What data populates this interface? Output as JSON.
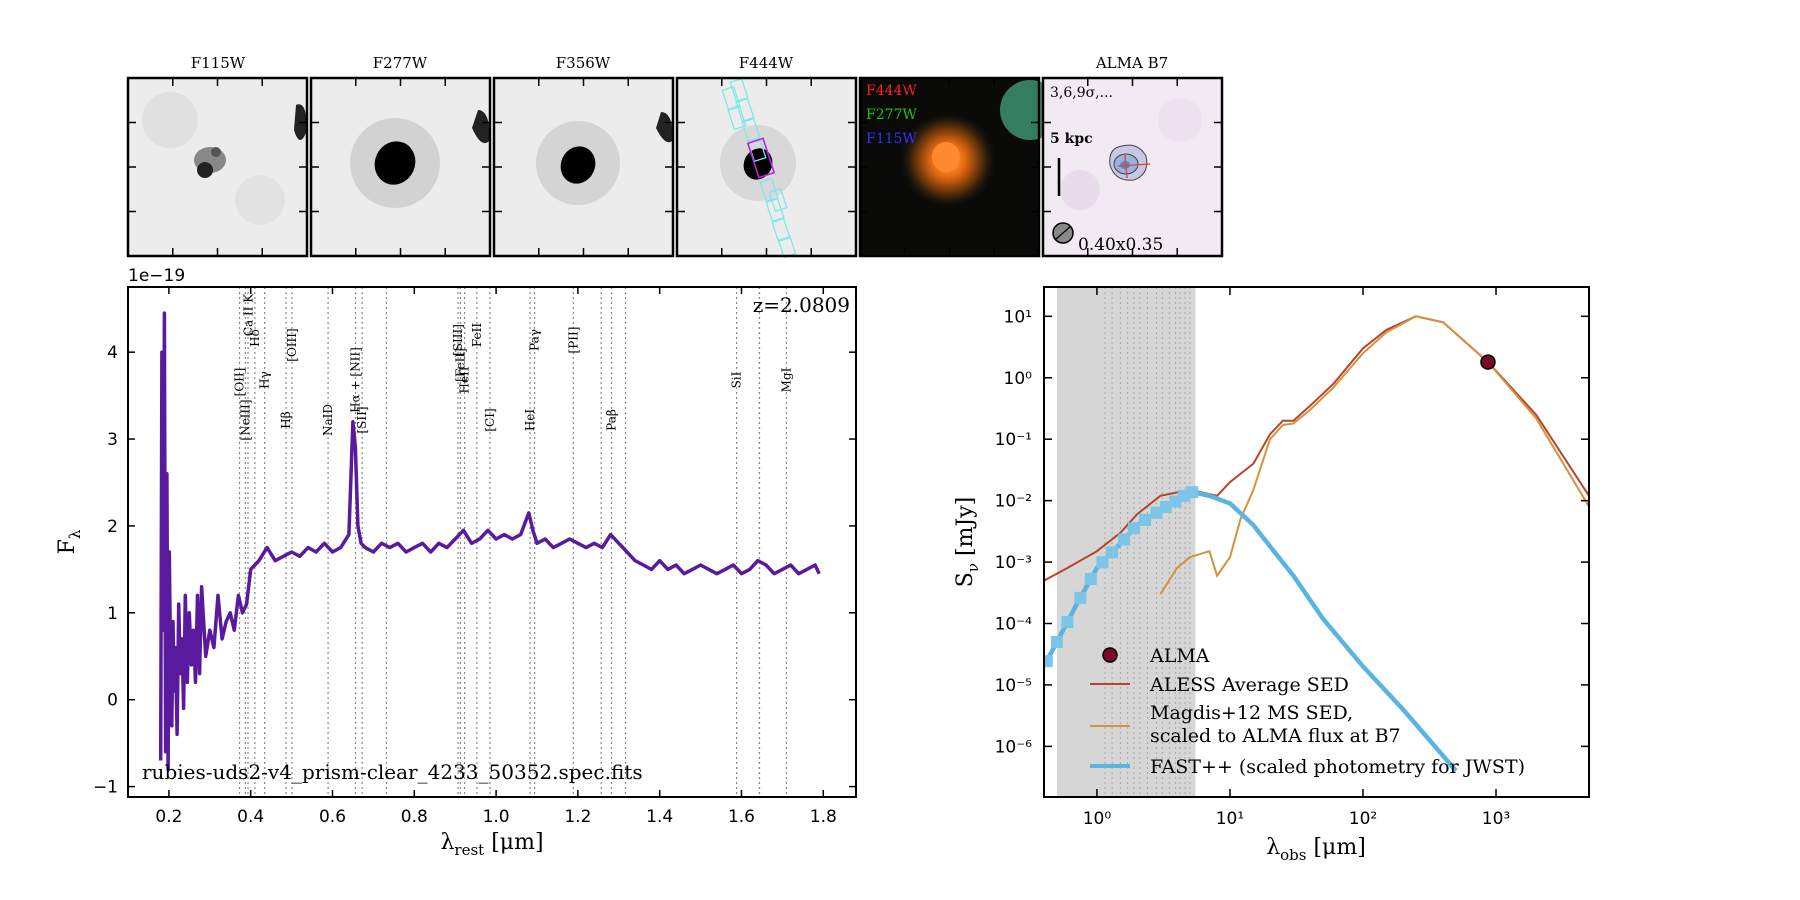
{
  "stamps": [
    {
      "title": "F115W"
    },
    {
      "title": "F277W"
    },
    {
      "title": "F356W"
    },
    {
      "title": "F444W"
    },
    {
      "title": ""
    },
    {
      "title": "ALMA B7"
    }
  ],
  "rgb_legend": [
    {
      "label": "F444W",
      "color": "#ff2020"
    },
    {
      "label": "F277W",
      "color": "#20c020"
    },
    {
      "label": "F115W",
      "color": "#3030ff"
    }
  ],
  "alma_stamp": {
    "contour_text": "3,6,9σ,...",
    "scale_text": "5 kpc",
    "beam_text": "0.40x0.35"
  },
  "spectrum": {
    "exponent_label": "1e−19",
    "redshift_label": "z=2.0809",
    "filename": "rubies-uds2-v4_prism-clear_4233_50352.spec.fits",
    "ylabel": "F",
    "ylabel_sub": "λ",
    "xlabel": "λ",
    "xlabel_sub": "rest",
    "xlabel_unit": " [μm]",
    "line_color": "#5a1a9e",
    "xlim": [
      0.1,
      1.88
    ],
    "ylim": [
      -1.12,
      4.75
    ],
    "xticks": [
      "0.2",
      "0.4",
      "0.6",
      "0.8",
      "1.0",
      "1.2",
      "1.4",
      "1.6",
      "1.8"
    ],
    "yticks": [
      "−1",
      "0",
      "1",
      "2",
      "3",
      "4"
    ]
  },
  "sed": {
    "ylabel": "S",
    "ylabel_sub": "ν",
    "ylabel_unit": " [mJy]",
    "xlabel": "λ",
    "xlabel_sub": "obs",
    "xlabel_unit": " [μm]",
    "xticks": [
      "10⁰",
      "10¹",
      "10²",
      "10³"
    ],
    "yticks": [
      "10⁻⁶",
      "10⁻⁵",
      "10⁻⁴",
      "10⁻³",
      "10⁻²",
      "10⁻¹",
      "10⁰",
      "10¹"
    ],
    "legend": [
      {
        "label": "ALMA",
        "type": "marker",
        "color": "#7a0a2a"
      },
      {
        "label": "ALESS Average SED",
        "type": "line",
        "color": "#b5442a"
      },
      {
        "label": "Magdis+12 MS SED,",
        "label2": "scaled to ALMA flux at B7",
        "type": "line",
        "color": "#d4923c"
      },
      {
        "label": "FAST++ (scaled photometry for JWST)",
        "type": "line",
        "color": "#5ab4e0"
      }
    ]
  },
  "chart_data": [
    {
      "type": "line",
      "title": "",
      "xlabel": "λrest [μm]",
      "ylabel": "Fλ",
      "y_scale_factor": "1e-19",
      "xlim": [
        0.1,
        1.88
      ],
      "ylim": [
        -1.12,
        4.75
      ],
      "series": [
        {
          "name": "rubies-uds2-v4_prism-clear_4233_50352.spec.fits",
          "x": [
            0.18,
            0.183,
            0.186,
            0.189,
            0.192,
            0.195,
            0.198,
            0.201,
            0.204,
            0.207,
            0.21,
            0.213,
            0.216,
            0.22,
            0.224,
            0.228,
            0.232,
            0.236,
            0.24,
            0.245,
            0.25,
            0.255,
            0.26,
            0.265,
            0.27,
            0.275,
            0.28,
            0.29,
            0.3,
            0.31,
            0.32,
            0.33,
            0.34,
            0.35,
            0.36,
            0.37,
            0.38,
            0.39,
            0.4,
            0.42,
            0.44,
            0.46,
            0.48,
            0.5,
            0.52,
            0.54,
            0.56,
            0.58,
            0.6,
            0.62,
            0.64,
            0.65,
            0.656,
            0.662,
            0.67,
            0.68,
            0.7,
            0.72,
            0.74,
            0.76,
            0.78,
            0.8,
            0.82,
            0.84,
            0.86,
            0.88,
            0.9,
            0.92,
            0.94,
            0.96,
            0.98,
            1.0,
            1.02,
            1.04,
            1.06,
            1.08,
            1.09,
            1.1,
            1.12,
            1.14,
            1.16,
            1.18,
            1.2,
            1.22,
            1.24,
            1.26,
            1.28,
            1.3,
            1.32,
            1.34,
            1.36,
            1.38,
            1.4,
            1.42,
            1.44,
            1.46,
            1.48,
            1.5,
            1.52,
            1.54,
            1.56,
            1.58,
            1.6,
            1.62,
            1.64,
            1.66,
            1.68,
            1.7,
            1.72,
            1.74,
            1.76,
            1.78,
            1.79
          ],
          "y": [
            -0.7,
            4.0,
            0.8,
            4.45,
            -0.6,
            2.6,
            -0.8,
            1.7,
            0.5,
            -0.3,
            0.9,
            0.1,
            0.6,
            -0.4,
            1.1,
            0.3,
            0.7,
            -0.1,
            1.2,
            0.2,
            1.0,
            0.4,
            0.8,
            0.2,
            1.2,
            0.3,
            1.3,
            0.5,
            0.8,
            0.6,
            1.2,
            0.7,
            0.9,
            1.0,
            0.8,
            1.2,
            1.0,
            1.1,
            1.5,
            1.6,
            1.75,
            1.6,
            1.65,
            1.7,
            1.65,
            1.75,
            1.7,
            1.8,
            1.7,
            1.75,
            1.9,
            3.2,
            2.9,
            2.0,
            1.8,
            1.75,
            1.7,
            1.8,
            1.75,
            1.8,
            1.7,
            1.75,
            1.8,
            1.7,
            1.8,
            1.75,
            1.85,
            1.95,
            1.8,
            1.85,
            1.95,
            1.85,
            1.9,
            1.85,
            1.9,
            2.15,
            1.95,
            1.8,
            1.85,
            1.75,
            1.8,
            1.85,
            1.8,
            1.75,
            1.8,
            1.75,
            1.9,
            1.8,
            1.7,
            1.6,
            1.55,
            1.5,
            1.6,
            1.5,
            1.55,
            1.45,
            1.5,
            1.55,
            1.5,
            1.45,
            1.5,
            1.55,
            1.45,
            1.5,
            1.6,
            1.55,
            1.45,
            1.5,
            1.55,
            1.45,
            1.5,
            1.55,
            1.45
          ]
        }
      ],
      "annotations": [
        "z=2.0809",
        "[NeIII]",
        "[OII]",
        "Ca II K",
        "Hδ",
        "Hγ",
        "Hβ",
        "[OIII]",
        "NaID",
        "Hα + [NII]",
        "[SII]",
        "[SIII]",
        "[FeII]",
        "HeII",
        "FeII",
        "[CI]",
        "HeI",
        "Paγ",
        "[PII]",
        "Paβ",
        "SiI",
        "MgI"
      ],
      "line_markers_um": [
        0.3727,
        0.3869,
        0.3934,
        0.4102,
        0.4341,
        0.4863,
        0.5007,
        0.5892,
        0.6563,
        0.6725,
        0.732,
        0.9069,
        0.9531,
        0.9128,
        0.9229,
        0.985,
        1.083,
        1.0941,
        1.1887,
        1.257,
        1.2822,
        1.3164,
        1.588,
        1.644,
        1.644,
        1.71
      ]
    },
    {
      "type": "line",
      "title": "",
      "xlabel": "λobs [μm]",
      "ylabel": "Sν [mJy]",
      "x_scale": "log",
      "y_scale": "log",
      "xlim": [
        0.4,
        5000
      ],
      "ylim": [
        1.5e-07,
        30
      ],
      "series": [
        {
          "name": "ALMA",
          "x": [
            870
          ],
          "y": [
            1.8
          ]
        },
        {
          "name": "ALESS Average SED",
          "x": [
            0.4,
            0.6,
            1,
            1.5,
            2,
            3,
            5,
            8,
            10,
            15,
            20,
            25,
            30,
            40,
            60,
            100,
            150,
            250,
            400,
            870,
            2000,
            5000
          ],
          "y": [
            0.0005,
            0.0008,
            0.0015,
            0.003,
            0.006,
            0.012,
            0.015,
            0.012,
            0.02,
            0.04,
            0.12,
            0.2,
            0.2,
            0.35,
            0.8,
            3,
            6,
            10,
            8,
            1.8,
            0.25,
            0.012
          ]
        },
        {
          "name": "Magdis+12 MS SED, scaled to ALMA flux at B7",
          "x": [
            3,
            4,
            5,
            7,
            8,
            10,
            12,
            15,
            20,
            25,
            30,
            40,
            60,
            100,
            150,
            250,
            400,
            870,
            2000,
            5000
          ],
          "y": [
            0.0003,
            0.0008,
            0.0012,
            0.0015,
            0.0006,
            0.0012,
            0.005,
            0.015,
            0.1,
            0.17,
            0.18,
            0.3,
            0.7,
            2.5,
            5.5,
            10,
            8,
            1.8,
            0.22,
            0.008
          ]
        },
        {
          "name": "FAST++ (scaled photometry for JWST)",
          "x": [
            0.4,
            0.5,
            0.7,
            1.0,
            1.5,
            2,
            3,
            4,
            5,
            7,
            10,
            15,
            20,
            30,
            50,
            100,
            200,
            500
          ],
          "y": [
            2e-05,
            5e-05,
            0.0002,
            0.0008,
            0.002,
            0.004,
            0.007,
            0.01,
            0.014,
            0.012,
            0.009,
            0.004,
            0.0018,
            0.0006,
            0.00012,
            2e-05,
            4e-06,
            4e-07
          ]
        }
      ],
      "shaded_region_um": [
        0.5,
        5.5
      ]
    }
  ]
}
